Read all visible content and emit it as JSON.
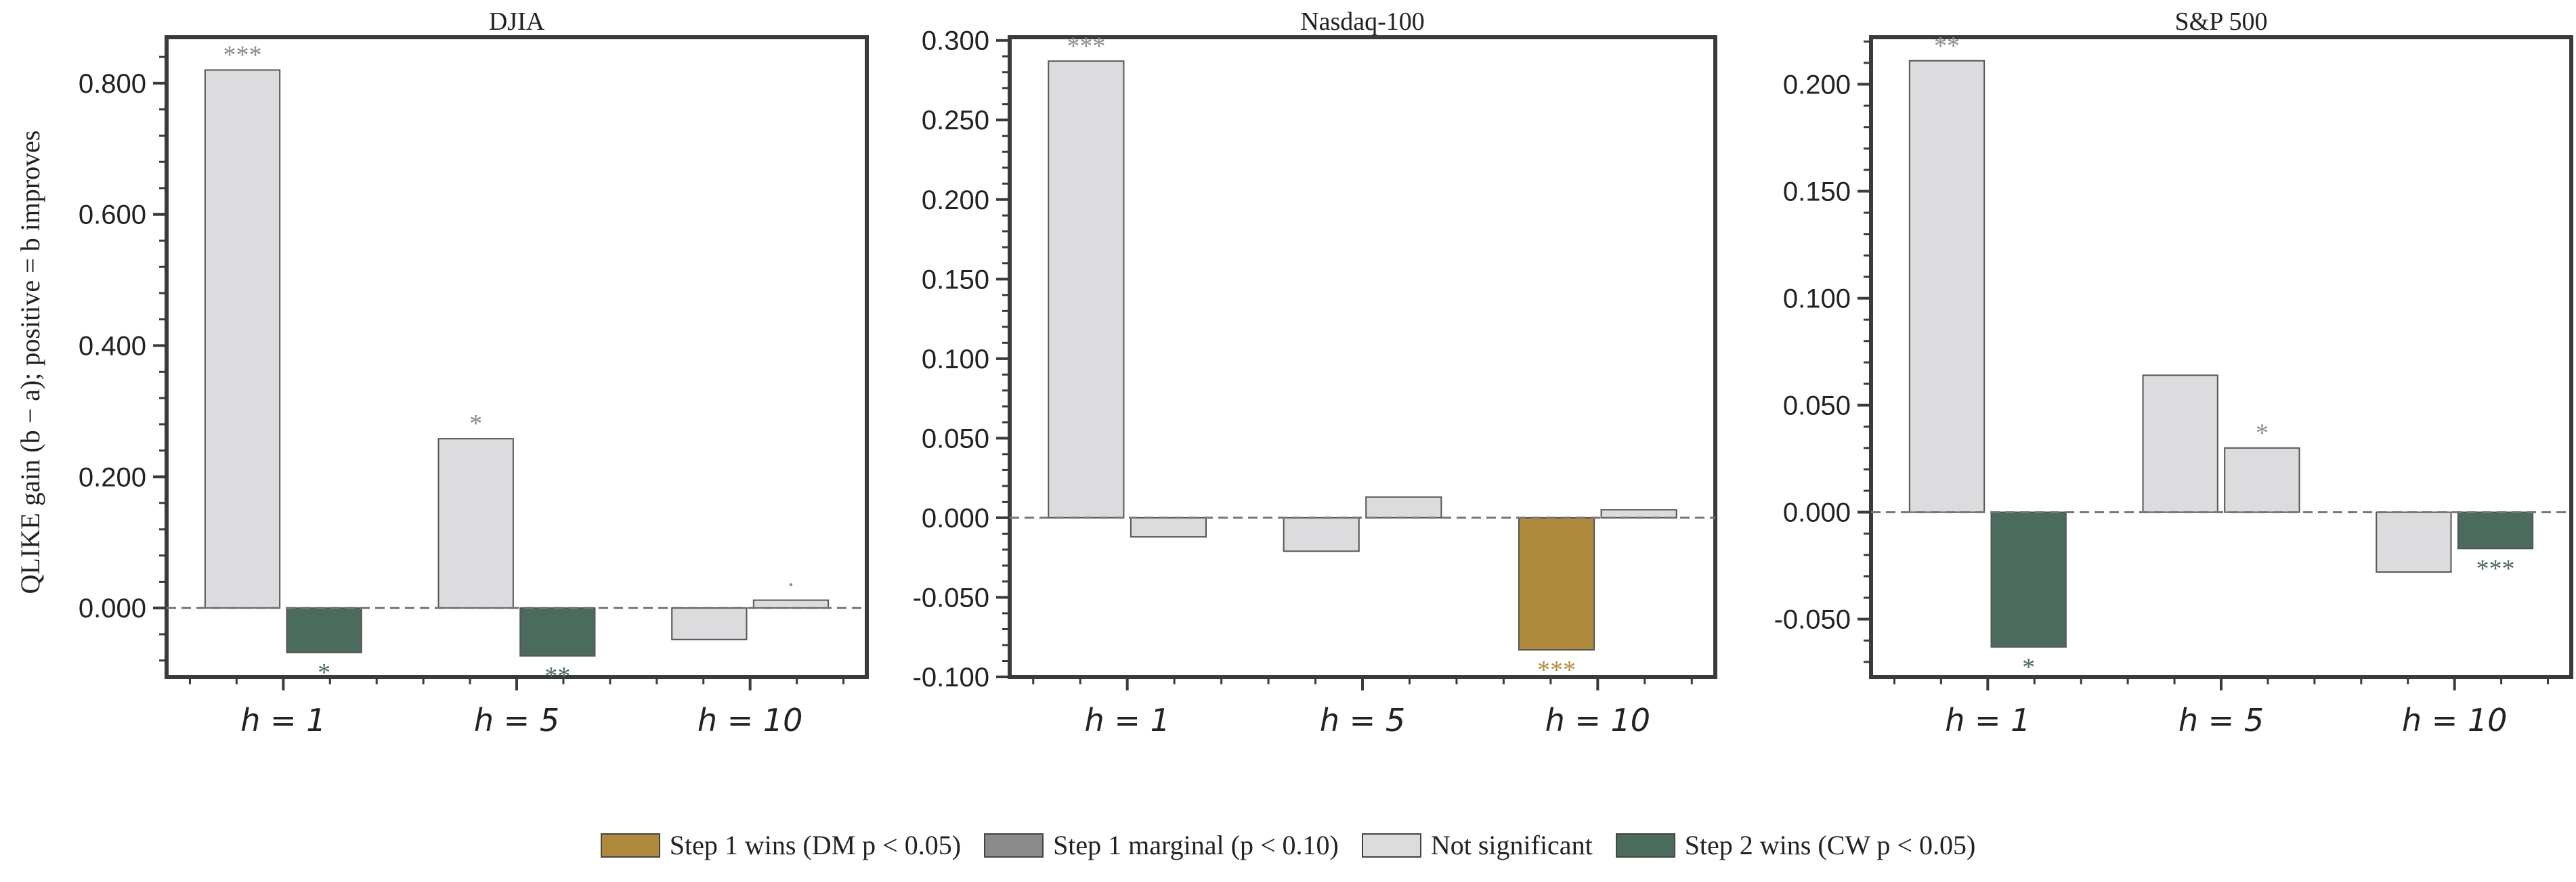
{
  "figure": {
    "y_axis_title": "QLIKE gain (b − a); positive = b improves"
  },
  "legend": {
    "items": [
      {
        "label": "Step 1 wins (DM p < 0.05)",
        "color": "#b08a3c"
      },
      {
        "label": "Step 1 marginal (p < 0.10)",
        "color": "#8a8a8a"
      },
      {
        "label": "Not significant",
        "color": "#dcdcde"
      },
      {
        "label": "Step 2 wins (CW p < 0.05)",
        "color": "#4b6b5d"
      }
    ]
  },
  "colors": {
    "step1_wins": "#b08a3c",
    "step1_marginal": "#8a8a8a",
    "not_significant": "#dcdcde",
    "step2_wins": "#4b6b5d",
    "star_neutral": "#8a8a8a"
  },
  "chart_data": [
    {
      "type": "bar",
      "title": "DJIA",
      "categories": [
        "h = 1",
        "h = 5",
        "h = 10"
      ],
      "ylim": [
        -0.105,
        0.87
      ],
      "ticks": [
        0.0,
        0.2,
        0.4,
        0.6,
        0.8
      ],
      "tick_labels": [
        "0.000",
        "0.200",
        "0.400",
        "0.600",
        "0.800"
      ],
      "bars": [
        {
          "category": "h = 1",
          "pair": 0,
          "value": 0.82,
          "status": "not_significant",
          "stars": "***",
          "star_color": "neutral"
        },
        {
          "category": "h = 1",
          "pair": 1,
          "value": -0.068,
          "status": "step2_wins",
          "stars": "*",
          "star_color": "green"
        },
        {
          "category": "h = 5",
          "pair": 0,
          "value": 0.258,
          "status": "not_significant",
          "stars": "*",
          "star_color": "neutral"
        },
        {
          "category": "h = 5",
          "pair": 1,
          "value": -0.073,
          "status": "step2_wins",
          "stars": "**",
          "star_color": "green"
        },
        {
          "category": "h = 10",
          "pair": 0,
          "value": -0.048,
          "status": "not_significant",
          "stars": "",
          "star_color": "neutral"
        },
        {
          "category": "h = 10",
          "pair": 1,
          "value": 0.012,
          "status": "not_significant",
          "stars": "·",
          "star_color": "neutral"
        }
      ]
    },
    {
      "type": "bar",
      "title": "Nasdaq-100",
      "categories": [
        "h = 1",
        "h = 5",
        "h = 10"
      ],
      "ylim": [
        -0.1,
        0.302
      ],
      "ticks": [
        -0.1,
        -0.05,
        0.0,
        0.05,
        0.1,
        0.15,
        0.2,
        0.25,
        0.3
      ],
      "tick_labels": [
        "-0.100",
        "-0.050",
        "0.000",
        "0.050",
        "0.100",
        "0.150",
        "0.200",
        "0.250",
        "0.300"
      ],
      "bars": [
        {
          "category": "h = 1",
          "pair": 0,
          "value": 0.287,
          "status": "not_significant",
          "stars": "***",
          "star_color": "neutral"
        },
        {
          "category": "h = 1",
          "pair": 1,
          "value": -0.012,
          "status": "not_significant",
          "stars": "",
          "star_color": "neutral"
        },
        {
          "category": "h = 5",
          "pair": 0,
          "value": -0.021,
          "status": "not_significant",
          "stars": "",
          "star_color": "neutral"
        },
        {
          "category": "h = 5",
          "pair": 1,
          "value": 0.013,
          "status": "not_significant",
          "stars": "",
          "star_color": "neutral"
        },
        {
          "category": "h = 10",
          "pair": 0,
          "value": -0.083,
          "status": "step1_wins",
          "stars": "***",
          "star_color": "gold"
        },
        {
          "category": "h = 10",
          "pair": 1,
          "value": 0.005,
          "status": "not_significant",
          "stars": "",
          "star_color": "neutral"
        }
      ]
    },
    {
      "type": "bar",
      "title": "S&P 500",
      "categories": [
        "h = 1",
        "h = 5",
        "h = 10"
      ],
      "ylim": [
        -0.077,
        0.222
      ],
      "ticks": [
        -0.05,
        0.0,
        0.05,
        0.1,
        0.15,
        0.2
      ],
      "tick_labels": [
        "-0.050",
        "0.000",
        "0.050",
        "0.100",
        "0.150",
        "0.200"
      ],
      "bars": [
        {
          "category": "h = 1",
          "pair": 0,
          "value": 0.211,
          "status": "not_significant",
          "stars": "**",
          "star_color": "neutral"
        },
        {
          "category": "h = 1",
          "pair": 1,
          "value": -0.063,
          "status": "step2_wins",
          "stars": "*",
          "star_color": "green"
        },
        {
          "category": "h = 5",
          "pair": 0,
          "value": 0.064,
          "status": "not_significant",
          "stars": "",
          "star_color": "neutral"
        },
        {
          "category": "h = 5",
          "pair": 1,
          "value": 0.03,
          "status": "not_significant",
          "stars": "*",
          "star_color": "neutral"
        },
        {
          "category": "h = 10",
          "pair": 0,
          "value": -0.028,
          "status": "not_significant",
          "stars": "",
          "star_color": "neutral"
        },
        {
          "category": "h = 10",
          "pair": 1,
          "value": -0.017,
          "status": "step2_wins",
          "stars": "***",
          "star_color": "green"
        }
      ]
    }
  ]
}
